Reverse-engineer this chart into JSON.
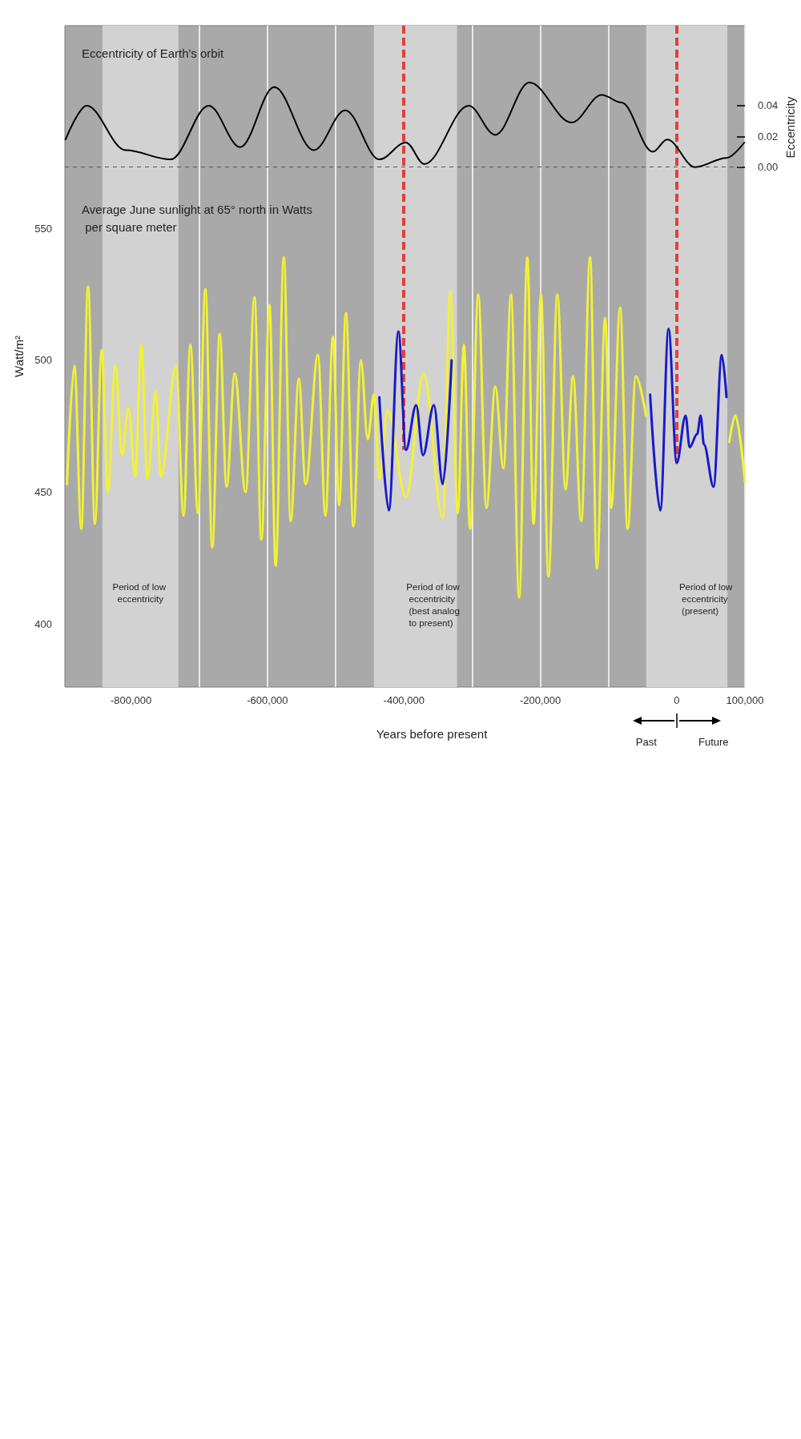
{
  "chart_data": {
    "type": "line",
    "xlabel": "Years before present",
    "ylabel": "Watt/m²",
    "y2label": "Eccentricity",
    "xlim": [
      -897000,
      100000
    ],
    "xticks": [
      {
        "value": -800000,
        "label": "-800,000"
      },
      {
        "value": -700000,
        "label": null
      },
      {
        "value": -600000,
        "label": "-600,000"
      },
      {
        "value": -500000,
        "label": null
      },
      {
        "value": -400000,
        "label": "-400,000"
      },
      {
        "value": -300000,
        "label": null
      },
      {
        "value": -200000,
        "label": "-200,000"
      },
      {
        "value": -100000,
        "label": null
      },
      {
        "value": 0,
        "label": "0"
      },
      {
        "value": 100000,
        "label": "100,000"
      }
    ],
    "ylim": [
      376,
      627
    ],
    "yticks": [
      400,
      450,
      500,
      550
    ],
    "y2lim": [
      -0.338,
      0.092
    ],
    "y2ticks": [
      {
        "value": 0,
        "label": "0.00"
      },
      {
        "value": 0.02,
        "label": "0.02"
      },
      {
        "value": 0.04,
        "label": "0.04"
      }
    ],
    "grid": "x",
    "series": [
      {
        "color": "#f2f236",
        "x": [
          100000,
          86000,
          77000,
          0,
          -45000,
          -60000,
          -72000,
          -83000,
          -96000,
          -105000,
          -117000,
          -127000,
          -140000,
          -152000,
          -163000,
          -175000,
          -188000,
          -199000,
          -210000,
          -219000,
          -231000,
          -243000,
          -254000,
          -266000,
          -279000,
          -291000,
          -303000,
          -312000,
          -321000,
          -332000,
          -343000,
          -371000,
          -397000,
          -424000,
          -436000,
          -444000,
          -453000,
          -463000,
          -474000,
          -485000,
          -495000,
          -504000,
          -515000,
          -526000,
          -544000,
          -554000,
          -566000,
          -576000,
          -588000,
          -597000,
          -609000,
          -619000,
          -632000,
          -648000,
          -660000,
          -670000,
          -681000,
          -691000,
          -702000,
          -713000,
          -723000,
          -734000,
          -756000,
          -764000,
          -776000,
          -785000,
          -794000,
          -804000,
          -813000,
          -823000,
          -834000,
          -843000,
          -853000,
          -863000,
          -873000,
          -883000,
          -894000
        ],
        "values": [
          454,
          479,
          469,
          null,
          479,
          494,
          436,
          520,
          444,
          516,
          421,
          539,
          439,
          494,
          451,
          525,
          418,
          525,
          438,
          539,
          410,
          525,
          459,
          490,
          444,
          525,
          436,
          506,
          442,
          526,
          440,
          495,
          448,
          481,
          455,
          487,
          470,
          500,
          437,
          518,
          445,
          509,
          441,
          502,
          453,
          493,
          439,
          539,
          422,
          521,
          432,
          524,
          450,
          495,
          452,
          510,
          429,
          527,
          442,
          506,
          441,
          498,
          456,
          488,
          455,
          506,
          456,
          482,
          464,
          498,
          450,
          504,
          438,
          528,
          436,
          498,
          453
        ]
      },
      {
        "color": "#1a1ac8",
        "x": [
          73000,
          66000,
          54000,
          40000,
          35000,
          30000,
          19000,
          13000,
          0,
          -12000,
          -24000,
          -39000
        ],
        "values": [
          486,
          502,
          452,
          468,
          479,
          472,
          467,
          479,
          461,
          512,
          443,
          487
        ]
      },
      {
        "color": "#1a1ac8",
        "x": [
          -330000,
          -343000,
          -356000,
          -372000,
          -382000,
          -397000,
          -408000,
          -422000,
          -436000
        ],
        "values": [
          500,
          453,
          483,
          464,
          483,
          466,
          511,
          443,
          486
        ]
      },
      {
        "color": "#000000",
        "axis": "y2",
        "x": [
          99000,
          73000,
          27000,
          -14000,
          -35000,
          -81000,
          -110000,
          -154000,
          -216000,
          -266000,
          -305000,
          -370000,
          -397000,
          -436000,
          -486000,
          -532000,
          -590000,
          -640000,
          -686000,
          -742000,
          -808000,
          -865000,
          -896000
        ],
        "values": [
          0.016,
          0.006,
          0.0,
          0.018,
          0.01,
          0.042,
          0.047,
          0.029,
          0.055,
          0.021,
          0.04,
          0.002,
          0.016,
          0.005,
          0.037,
          0.011,
          0.052,
          0.013,
          0.04,
          0.005,
          0.011,
          0.04,
          0.018
        ]
      }
    ],
    "ref_lines": [
      {
        "axis": "x",
        "value": 0,
        "color": "#e2403a",
        "line_style": "dashed"
      },
      {
        "axis": "x",
        "value": -400000,
        "color": "#e2403a",
        "line_style": "dashed"
      },
      {
        "axis": "y2",
        "value": 0,
        "color": "#555555",
        "line_style": "dashed"
      }
    ],
    "bands": [
      {
        "axis": "x",
        "from": -44700,
        "to": 74300,
        "label": "Period of low eccentricity (present)",
        "color": "#d2d2d2"
      },
      {
        "axis": "x",
        "from": -444000,
        "to": -322000,
        "label": "Period of low eccentricity (best analog to present)",
        "color": "#d2d2d2"
      },
      {
        "axis": "x",
        "from": -842000,
        "to": -730500,
        "label": "Period of low eccentricity",
        "color": "#d2d2d2"
      }
    ],
    "annotations": [
      "Eccentricity of Earth's orbit",
      "Average June sunlight at 65° north in Watts per square meter",
      "Past",
      "Future"
    ]
  }
}
